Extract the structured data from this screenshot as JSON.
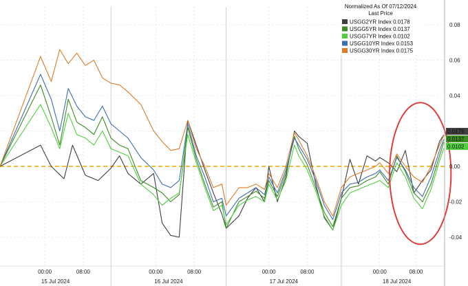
{
  "chart_data": {
    "type": "line",
    "legend": {
      "title_line1": "Normalized As Of 07/12/2024",
      "title_line2": "Last Price",
      "placement": "top-right"
    },
    "ylim": [
      -0.05,
      0.09
    ],
    "y_ticks": [
      {
        "value": 0.08,
        "label": "0.08"
      },
      {
        "value": 0.06,
        "label": "0.06"
      },
      {
        "value": 0.04,
        "label": "0.04"
      },
      {
        "value": 0.02,
        "label": "0.02"
      },
      {
        "value": 0.0,
        "label": "0.00"
      },
      {
        "value": -0.02,
        "label": "-0.02"
      },
      {
        "value": -0.04,
        "label": "-0.04"
      }
    ],
    "xlim": [
      0,
      100
    ],
    "x_time_ticks": [
      {
        "x": 10.5,
        "label": "00:00"
      },
      {
        "x": 19.5,
        "label": "08:00"
      },
      {
        "x": 36.5,
        "label": "00:00"
      },
      {
        "x": 45.5,
        "label": "08:00"
      },
      {
        "x": 63.0,
        "label": "00:00"
      },
      {
        "x": 72.0,
        "label": "08:00"
      },
      {
        "x": 89.0,
        "label": "00:00"
      },
      {
        "x": 97.5,
        "label": "08:00"
      }
    ],
    "x_day_labels": [
      {
        "x": 13.0,
        "label": "15 Jul 2024"
      },
      {
        "x": 39.5,
        "label": "16 Jul 2024"
      },
      {
        "x": 66.5,
        "label": "17 Jul 2024"
      },
      {
        "x": 93.0,
        "label": "18 Jul 2024"
      }
    ],
    "day_separators": [
      26.0,
      53.0,
      80.0
    ],
    "reference_line": {
      "value": 0.0,
      "color": "#f0a500",
      "style": "dashed"
    },
    "highlight": {
      "type": "ellipse",
      "color": "#e23b3b",
      "x_center": 98.5,
      "y_center": -0.004,
      "x_radius": 7.2,
      "y_radius": 0.04
    },
    "series": [
      {
        "name": "USGG2YR Index",
        "last": "0.0178",
        "color": "#3f3f3f",
        "x": [
          0,
          9.5,
          12,
          15,
          17,
          20,
          23,
          26,
          28,
          30,
          33,
          36,
          38,
          40,
          42,
          44,
          46,
          48,
          50,
          52,
          53,
          56,
          58,
          60,
          62,
          63,
          65,
          67,
          69,
          70,
          72,
          74,
          76,
          78,
          80,
          82,
          84,
          86,
          88,
          89,
          91,
          93,
          95,
          97,
          99,
          101,
          103,
          104
        ],
        "y": [
          0.0,
          0.012,
          0.0,
          -0.007,
          0.012,
          -0.005,
          -0.008,
          -0.001,
          0.006,
          -0.004,
          -0.01,
          -0.004,
          -0.032,
          -0.039,
          -0.04,
          0.026,
          0.012,
          -0.002,
          -0.015,
          -0.027,
          -0.035,
          -0.028,
          -0.018,
          -0.012,
          -0.02,
          0.0,
          -0.02,
          -0.006,
          0.02,
          0.017,
          0.013,
          -0.01,
          -0.029,
          -0.036,
          -0.018,
          0.004,
          -0.01,
          0.006,
          0.003,
          0.005,
          0.002,
          -0.003,
          0.009,
          -0.015,
          -0.008,
          -0.002,
          0.014,
          0.0178
        ]
      },
      {
        "name": "USGG5YR Index",
        "last": "0.0137",
        "color": "#3c8c22",
        "x": [
          0,
          9.5,
          12,
          14,
          16,
          18,
          20,
          22,
          24,
          26,
          28,
          30,
          33,
          36,
          38,
          40,
          42,
          44,
          46,
          48,
          50,
          52,
          53,
          56,
          58,
          60,
          62,
          63,
          65,
          67,
          69,
          70,
          72,
          74,
          76,
          78,
          80,
          82,
          84,
          86,
          88,
          89,
          91,
          93,
          95,
          97,
          99,
          101,
          103,
          104
        ],
        "y": [
          0.0,
          0.046,
          0.028,
          0.012,
          0.038,
          0.025,
          0.022,
          0.018,
          0.028,
          0.016,
          0.012,
          0.01,
          -0.008,
          -0.012,
          -0.015,
          -0.02,
          -0.016,
          0.022,
          0.004,
          -0.01,
          -0.023,
          -0.02,
          -0.035,
          -0.02,
          -0.017,
          -0.014,
          -0.018,
          -0.008,
          -0.017,
          -0.004,
          0.017,
          0.01,
          0.001,
          -0.012,
          -0.026,
          -0.034,
          -0.018,
          -0.012,
          -0.011,
          -0.008,
          -0.006,
          -0.003,
          -0.01,
          0.006,
          -0.003,
          -0.015,
          -0.02,
          -0.01,
          0.006,
          0.0137
        ]
      },
      {
        "name": "USGG7YR Index",
        "last": "0.0102",
        "color": "#4fcf3e",
        "x": [
          0,
          9.5,
          12,
          14,
          16,
          18,
          20,
          22,
          24,
          26,
          28,
          30,
          33,
          36,
          38,
          40,
          42,
          44,
          46,
          48,
          50,
          52,
          53,
          56,
          58,
          60,
          62,
          63,
          65,
          67,
          69,
          70,
          72,
          74,
          76,
          78,
          80,
          82,
          84,
          86,
          88,
          89,
          91,
          93,
          95,
          97,
          99,
          101,
          103,
          104
        ],
        "y": [
          0.0,
          0.035,
          0.022,
          0.01,
          0.03,
          0.018,
          0.016,
          0.012,
          0.02,
          0.01,
          0.008,
          0.006,
          -0.01,
          -0.016,
          -0.022,
          -0.018,
          -0.015,
          0.018,
          0.002,
          -0.012,
          -0.025,
          -0.022,
          -0.033,
          -0.022,
          -0.019,
          -0.017,
          -0.02,
          -0.01,
          -0.019,
          -0.008,
          0.012,
          0.006,
          -0.002,
          -0.014,
          -0.028,
          -0.036,
          -0.022,
          -0.015,
          -0.013,
          -0.011,
          -0.009,
          -0.008,
          -0.012,
          0.002,
          -0.006,
          -0.018,
          -0.024,
          -0.013,
          0.003,
          0.0102
        ]
      },
      {
        "name": "USGG10YR Index",
        "last": "0.0153",
        "color": "#3a6eb5",
        "x": [
          0,
          9.5,
          12,
          14,
          16,
          18,
          20,
          22,
          24,
          26,
          28,
          30,
          33,
          36,
          38,
          40,
          42,
          44,
          46,
          48,
          50,
          52,
          53,
          56,
          58,
          60,
          62,
          63,
          65,
          67,
          69,
          70,
          72,
          74,
          76,
          78,
          80,
          82,
          84,
          86,
          88,
          89,
          91,
          93,
          95,
          97,
          99,
          101,
          103,
          104
        ],
        "y": [
          0.0,
          0.052,
          0.038,
          0.02,
          0.044,
          0.034,
          0.028,
          0.026,
          0.034,
          0.024,
          0.02,
          0.016,
          0.005,
          -0.002,
          -0.01,
          -0.012,
          -0.008,
          0.024,
          0.006,
          -0.006,
          -0.02,
          -0.018,
          -0.028,
          -0.018,
          -0.015,
          -0.012,
          -0.016,
          -0.006,
          -0.015,
          -0.002,
          0.016,
          0.012,
          0.004,
          -0.008,
          -0.022,
          -0.03,
          -0.015,
          -0.01,
          -0.009,
          -0.006,
          -0.004,
          -0.002,
          -0.008,
          0.005,
          -0.002,
          -0.012,
          -0.017,
          -0.006,
          0.009,
          0.0153
        ]
      },
      {
        "name": "USGG30YR Index",
        "last": "0.0175",
        "color": "#e07a25",
        "x": [
          0,
          9.5,
          12,
          14,
          16,
          18,
          20,
          22,
          24,
          26,
          28,
          30,
          33,
          36,
          38,
          40,
          42,
          44,
          46,
          48,
          50,
          52,
          53,
          56,
          58,
          60,
          62,
          63,
          65,
          67,
          69,
          70,
          72,
          74,
          76,
          78,
          80,
          82,
          84,
          86,
          88,
          89,
          91,
          93,
          95,
          97,
          99,
          101,
          103,
          104
        ],
        "y": [
          0.0,
          0.062,
          0.048,
          0.066,
          0.058,
          0.064,
          0.057,
          0.06,
          0.05,
          0.047,
          0.046,
          0.042,
          0.035,
          0.02,
          0.014,
          0.009,
          0.01,
          0.026,
          0.01,
          0.0,
          -0.012,
          -0.01,
          -0.022,
          -0.012,
          -0.012,
          -0.01,
          -0.013,
          -0.004,
          -0.012,
          0.0,
          0.019,
          0.015,
          0.006,
          -0.006,
          -0.02,
          -0.028,
          -0.012,
          -0.006,
          -0.004,
          -0.002,
          0.0,
          0.002,
          -0.004,
          0.007,
          0.0,
          -0.006,
          -0.009,
          0.0,
          0.012,
          0.0175
        ]
      }
    ]
  }
}
